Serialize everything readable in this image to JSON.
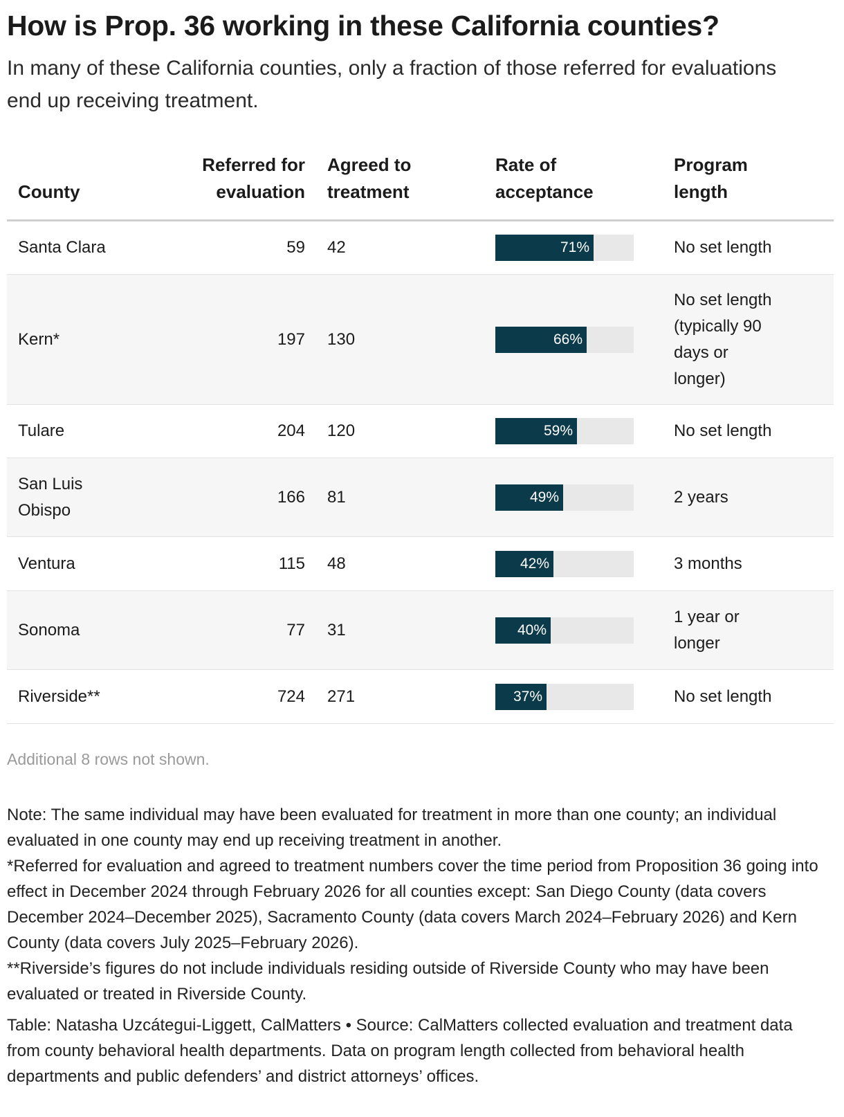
{
  "title": "How is Prop. 36 working in these California counties?",
  "subtitle": "In many of these California counties, only a fraction of those referred for evaluations end up receiving treatment.",
  "chart_data": {
    "type": "table",
    "columns": [
      {
        "key": "county",
        "line1": "",
        "line2": "County"
      },
      {
        "key": "referred",
        "line1": "Referred for",
        "line2": "evaluation"
      },
      {
        "key": "agreed",
        "line1": "Agreed to",
        "line2": "treatment"
      },
      {
        "key": "rate",
        "line1": "Rate of",
        "line2": "acceptance"
      },
      {
        "key": "length",
        "line1": "Program",
        "line2": "length"
      }
    ],
    "rows": [
      {
        "county": "Santa Clara",
        "referred": "59",
        "agreed": "42",
        "rate": 71,
        "rate_label": "71%",
        "length": "No set length"
      },
      {
        "county": "Kern*",
        "referred": "197",
        "agreed": "130",
        "rate": 66,
        "rate_label": "66%",
        "length": "No set length (typically 90 days or longer)"
      },
      {
        "county": "Tulare",
        "referred": "204",
        "agreed": "120",
        "rate": 59,
        "rate_label": "59%",
        "length": "No set length"
      },
      {
        "county": "San Luis Obispo",
        "referred": "166",
        "agreed": "81",
        "rate": 49,
        "rate_label": "49%",
        "length": "2 years"
      },
      {
        "county": "Ventura",
        "referred": "115",
        "agreed": "48",
        "rate": 42,
        "rate_label": "42%",
        "length": "3 months"
      },
      {
        "county": "Sonoma",
        "referred": "77",
        "agreed": "31",
        "rate": 40,
        "rate_label": "40%",
        "length": "1 year or longer"
      },
      {
        "county": "Riverside**",
        "referred": "724",
        "agreed": "271",
        "rate": 37,
        "rate_label": "37%",
        "length": "No set length"
      }
    ],
    "rate_max": 100,
    "bar_color": "#0b3b4b",
    "track_color": "#e8e8e8"
  },
  "more_rows": "Additional 8 rows not shown.",
  "notes": [
    "Note: The same individual may have been evaluated for treatment in more than one county; an individual evaluated in one county may end up receiving treatment in another.",
    "*Referred for evaluation and agreed to treatment numbers cover the time period from Proposition 36 going into effect in December 2024 through February 2026 for all counties except: San Diego County (data covers December 2024–December 2025), Sacramento County (data covers March 2024–February 2026) and Kern County (data covers July 2025–February 2026).",
    "**Riverside’s figures do not include individuals residing outside of Riverside County who may have been evaluated or treated in Riverside County."
  ],
  "credit": "Table: Natasha Uzcátegui-Liggett, CalMatters • Source: CalMatters collected evaluation and treatment data from county behavioral health departments. Data on program length collected from behavioral health departments and public defenders’ and district attorneys’ offices."
}
